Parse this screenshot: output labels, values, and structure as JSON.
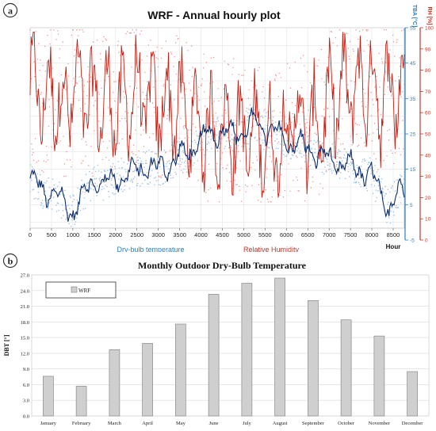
{
  "colors": {
    "rh_line": "#c81e12",
    "rh_scatter": "#f08a8a",
    "tba_line": "#0d2e6e",
    "tba_scatter": "#9cc3e6",
    "tba_axis": "#2a7fc4",
    "rh_axis": "#c0392b",
    "bar_fill": "#cfcfcf",
    "bar_stroke": "#7a7a7a"
  },
  "panel_a": {
    "badge": "a",
    "title": "WRF - Annual hourly plot",
    "legend_tba": "Dry-bulb temperature",
    "legend_rh": "Relative Humidity",
    "tba_axis_label": "TBA [°C]",
    "rh_axis_label": "RH [%]",
    "x_axis_label": "Hour"
  },
  "panel_b": {
    "badge": "b",
    "title": "Monthly Outdoor Dry-Bulb Temperature",
    "ylabel": "DBT [°]",
    "legend": "WRF"
  },
  "chart_data": [
    {
      "type": "line",
      "title": "WRF - Annual hourly plot",
      "xlabel": "Hour",
      "x_ticks": [
        0,
        500,
        1000,
        1500,
        2000,
        2500,
        3000,
        3500,
        4000,
        4500,
        5000,
        5500,
        6000,
        6500,
        7000,
        7500,
        8000,
        8500
      ],
      "xlim": [
        0,
        8760
      ],
      "y_axes": [
        {
          "label": "TBA [°C]",
          "range": [
            -5,
            55
          ],
          "ticks": [
            -5,
            5,
            15,
            25,
            35,
            45,
            55
          ],
          "side": "right-inner"
        },
        {
          "label": "RH [%]",
          "range": [
            0,
            100
          ],
          "ticks": [
            0,
            10,
            20,
            30,
            40,
            50,
            60,
            70,
            80,
            90,
            100
          ],
          "side": "right-outer"
        }
      ],
      "series": [
        {
          "name": "Dry-bulb temperature",
          "axis": "TBA [°C]",
          "x": [
            0,
            300,
            600,
            800,
            1000,
            1200,
            1500,
            1800,
            2100,
            2400,
            2700,
            3000,
            3300,
            3600,
            3900,
            4200,
            4500,
            4800,
            5100,
            5300,
            5600,
            5900,
            6200,
            6500,
            6800,
            7100,
            7400,
            7700,
            8000,
            8200,
            8400,
            8600,
            8760
          ],
          "values": [
            12,
            9,
            8,
            5,
            3,
            7,
            12,
            11,
            13,
            14,
            16,
            15,
            17,
            19,
            22,
            25,
            26,
            25,
            27,
            28,
            26,
            24,
            22,
            21,
            19,
            17,
            16,
            15,
            13,
            8,
            4,
            8,
            9
          ]
        },
        {
          "name": "Relative Humidity",
          "axis": "RH [%]",
          "x": [
            0,
            300,
            600,
            800,
            1000,
            1200,
            1500,
            1800,
            2100,
            2400,
            2700,
            3000,
            3300,
            3600,
            3900,
            4200,
            4500,
            4800,
            5100,
            5300,
            5600,
            5900,
            6200,
            6500,
            6800,
            7100,
            7400,
            7700,
            8000,
            8200,
            8400,
            8600,
            8760
          ],
          "values": [
            74,
            66,
            70,
            62,
            70,
            68,
            64,
            66,
            60,
            70,
            66,
            62,
            64,
            60,
            54,
            52,
            50,
            52,
            48,
            50,
            44,
            46,
            60,
            50,
            56,
            66,
            70,
            72,
            74,
            66,
            72,
            70,
            70
          ]
        }
      ],
      "legend": "bottom-center"
    },
    {
      "type": "bar",
      "title": "Monthly Outdoor Dry-Bulb Temperature",
      "xlabel": "",
      "ylabel": "DBT [°]",
      "categories": [
        "January",
        "February",
        "March",
        "April",
        "May",
        "June",
        "July",
        "August",
        "September",
        "October",
        "November",
        "December"
      ],
      "series": [
        {
          "name": "WRF",
          "values": [
            7.6,
            5.7,
            12.7,
            13.9,
            17.6,
            23.3,
            25.4,
            26.4,
            22.1,
            18.4,
            15.3,
            8.5
          ]
        }
      ],
      "ylim": [
        0,
        27
      ],
      "y_ticks": [
        "0.0",
        "3.0",
        "6.0",
        "9.0",
        "12.0",
        "15.0",
        "18.0",
        "21.0",
        "24.0",
        "27.0"
      ],
      "grid": true,
      "legend": "top-left"
    }
  ]
}
